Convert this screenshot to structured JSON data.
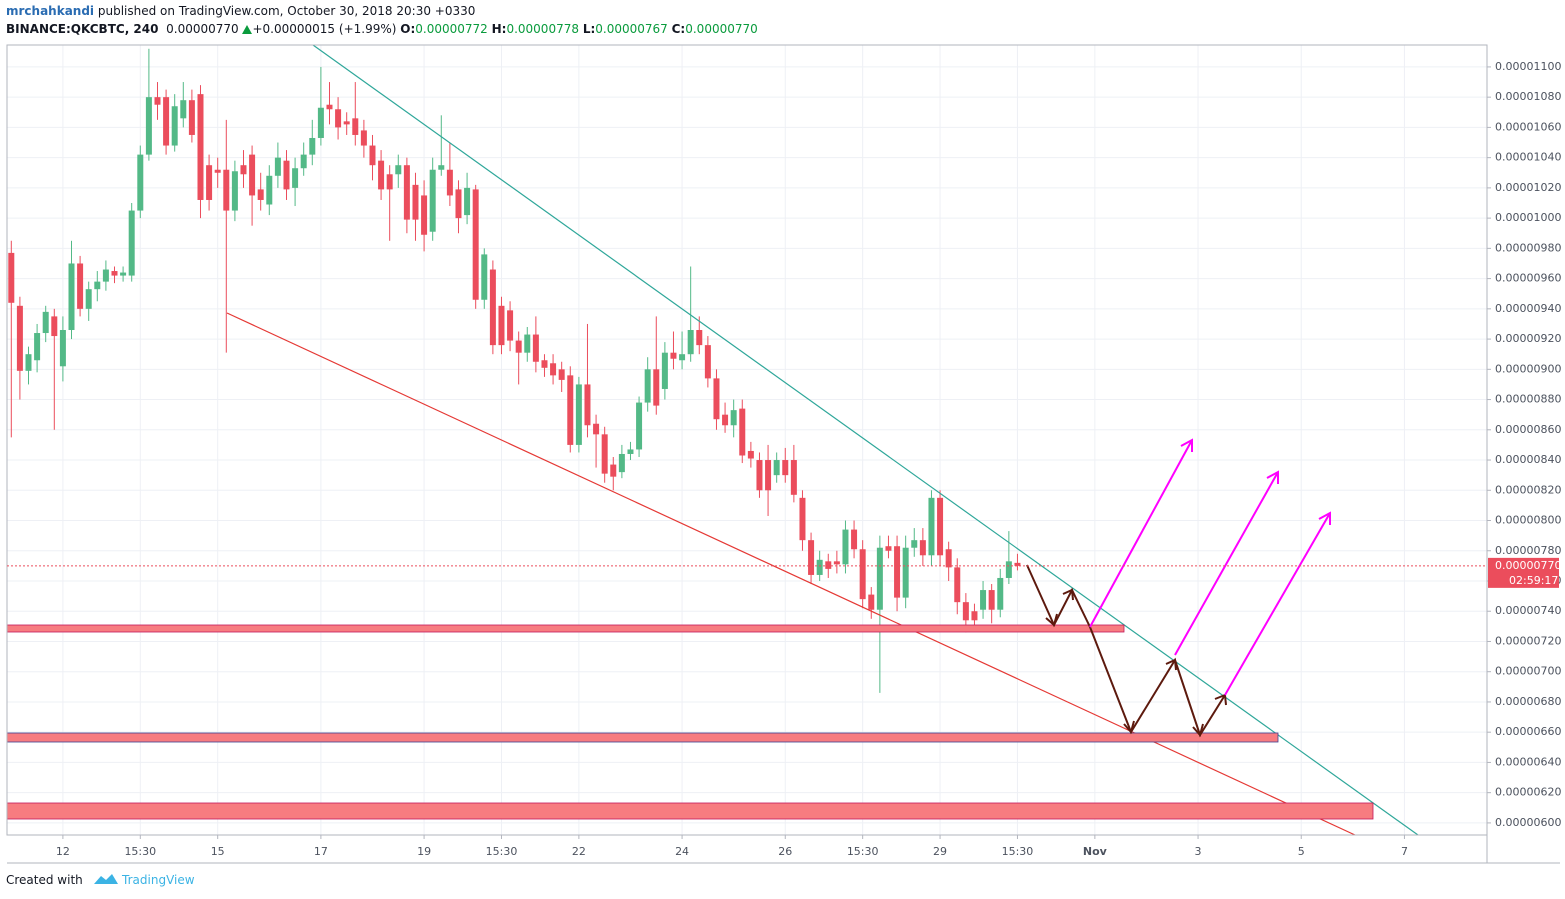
{
  "header": {
    "author": "mrchahkandi",
    "published": "published on TradingView.com, October 30, 2018 20:30 +0330",
    "symbol": "BINANCE:QKCBTC, 240",
    "last": "0.00000770",
    "change": "+0.00000015 (+1.99%)",
    "o_label": "O:",
    "o": "0.00000772",
    "h_label": "H:",
    "h": "0.00000778",
    "l_label": "L:",
    "l": "0.00000767",
    "c_label": "C:",
    "c": "0.00000770"
  },
  "countdown": "02:59:17",
  "footer": {
    "created": "Created with",
    "brand": "TradingView"
  },
  "chart_data": {
    "type": "candlestick",
    "up_color": "#53b987",
    "down_color": "#eb4d5c",
    "grid": true,
    "xlim": [
      -6.5,
      165.6
    ],
    "ylim": [
      5.92e-06,
      1.1145e-05
    ],
    "xticks": [
      {
        "value": 0,
        "label": "12"
      },
      {
        "value": 9,
        "label": "15:30"
      },
      {
        "value": 18,
        "label": "15"
      },
      {
        "value": 30,
        "label": "17"
      },
      {
        "value": 42,
        "label": "19"
      },
      {
        "value": 51,
        "label": "15:30"
      },
      {
        "value": 60,
        "label": "22"
      },
      {
        "value": 72,
        "label": "24"
      },
      {
        "value": 84,
        "label": "26"
      },
      {
        "value": 93,
        "label": "15:30"
      },
      {
        "value": 102,
        "label": "29"
      },
      {
        "value": 111,
        "label": "15:30"
      },
      {
        "value": 120,
        "label": "Nov"
      },
      {
        "value": 132,
        "label": "3"
      },
      {
        "value": 144,
        "label": "5"
      },
      {
        "value": 156,
        "label": "7"
      }
    ],
    "yticks": [
      {
        "value": 6e-06,
        "label": "0.00000600"
      },
      {
        "value": 6.2e-06,
        "label": "0.00000620"
      },
      {
        "value": 6.4e-06,
        "label": "0.00000640"
      },
      {
        "value": 6.6e-06,
        "label": "0.00000660"
      },
      {
        "value": 6.8e-06,
        "label": "0.00000680"
      },
      {
        "value": 7e-06,
        "label": "0.00000700"
      },
      {
        "value": 7.2e-06,
        "label": "0.00000720"
      },
      {
        "value": 7.4e-06,
        "label": "0.00000740"
      },
      {
        "value": 7.6e-06,
        "label": "0.00000760"
      },
      {
        "value": 7.8e-06,
        "label": "0.00000780"
      },
      {
        "value": 8e-06,
        "label": "0.00000800"
      },
      {
        "value": 8.2e-06,
        "label": "0.00000820"
      },
      {
        "value": 8.4e-06,
        "label": "0.00000840"
      },
      {
        "value": 8.6e-06,
        "label": "0.00000860"
      },
      {
        "value": 8.8e-06,
        "label": "0.00000880"
      },
      {
        "value": 9e-06,
        "label": "0.00000900"
      },
      {
        "value": 9.2e-06,
        "label": "0.00000920"
      },
      {
        "value": 9.4e-06,
        "label": "0.00000940"
      },
      {
        "value": 9.6e-06,
        "label": "0.00000960"
      },
      {
        "value": 9.8e-06,
        "label": "0.00000980"
      },
      {
        "value": 1e-05,
        "label": "0.00001000"
      },
      {
        "value": 1.02e-05,
        "label": "0.00001020"
      },
      {
        "value": 1.04e-05,
        "label": "0.00001040"
      },
      {
        "value": 1.06e-05,
        "label": "0.00001060"
      },
      {
        "value": 1.08e-05,
        "label": "0.00001080"
      },
      {
        "value": 1.1e-05,
        "label": "0.00001100"
      }
    ],
    "x": [
      -6,
      -5,
      -4,
      -3,
      -2,
      -1,
      0,
      1,
      2,
      3,
      4,
      5,
      6,
      7,
      8,
      9,
      10,
      11,
      12,
      13,
      14,
      15,
      16,
      17,
      18,
      19,
      20,
      21,
      22,
      23,
      24,
      25,
      26,
      27,
      28,
      29,
      30,
      31,
      32,
      33,
      34,
      35,
      36,
      37,
      38,
      39,
      40,
      41,
      42,
      43,
      44,
      45,
      46,
      47,
      48,
      49,
      50,
      51,
      52,
      53,
      54,
      55,
      56,
      57,
      58,
      59,
      60,
      61,
      62,
      63,
      64,
      65,
      66,
      67,
      68,
      69,
      70,
      71,
      72,
      73,
      74,
      75,
      76,
      77,
      78,
      79,
      80,
      81,
      82,
      83,
      84,
      85,
      86,
      87,
      88,
      89,
      90,
      91,
      92,
      93,
      94,
      95,
      96,
      97,
      98,
      99,
      100,
      101,
      102,
      103,
      104,
      105,
      106,
      107,
      108,
      109,
      110,
      111
    ],
    "open": [
      9.77e-06,
      9.42e-06,
      8.99e-06,
      9.06e-06,
      9.24e-06,
      9.35e-06,
      9.02e-06,
      9.26e-06,
      9.7e-06,
      9.4e-06,
      9.53e-06,
      9.58e-06,
      9.65e-06,
      9.62e-06,
      9.62e-06,
      1.005e-05,
      1.042e-05,
      1.08e-05,
      1.08e-05,
      1.048e-05,
      1.066e-05,
      1.078e-05,
      1.082e-05,
      1.035e-05,
      1.032e-05,
      1.032e-05,
      1.005e-05,
      1.035e-05,
      1.042e-05,
      1.019e-05,
      1.009e-05,
      1.028e-05,
      1.038e-05,
      1.02e-05,
      1.033e-05,
      1.042e-05,
      1.053e-05,
      1.075e-05,
      1.072e-05,
      1.064e-05,
      1.066e-05,
      1.058e-05,
      1.048e-05,
      1.038e-05,
      1.029e-05,
      1.029e-05,
      1.035e-05,
      1.022e-05,
      1.015e-05,
      9.91e-06,
      1.032e-05,
      1.032e-05,
      1.019e-05,
      1.002e-05,
      1.019e-05,
      9.46e-06,
      9.66e-06,
      9.42e-06,
      9.39e-06,
      9.19e-06,
      9.11e-06,
      9.23e-06,
      9.06e-06,
      9.04e-06,
      9e-06,
      8.96e-06,
      8.5e-06,
      8.9e-06,
      8.64e-06,
      8.57e-06,
      8.37e-06,
      8.32e-06,
      8.44e-06,
      8.47e-06,
      8.78e-06,
      9e-06,
      8.87e-06,
      9.11e-06,
      9.06e-06,
      9.1e-06,
      9.26e-06,
      9.16e-06,
      8.94e-06,
      8.7e-06,
      8.63e-06,
      8.74e-06,
      8.46e-06,
      8.4e-06,
      8.4e-06,
      8.3e-06,
      8.4e-06,
      8.4e-06,
      8.15e-06,
      7.87e-06,
      7.64e-06,
      7.73e-06,
      7.73e-06,
      7.71e-06,
      7.94e-06,
      7.81e-06,
      7.51e-06,
      7.41e-06,
      7.83e-06,
      7.83e-06,
      7.49e-06,
      7.82e-06,
      7.87e-06,
      7.77e-06,
      8.15e-06,
      7.81e-06,
      7.69e-06,
      7.46e-06,
      7.4e-06,
      7.41e-06,
      7.54e-06,
      7.41e-06,
      7.62e-06,
      7.72e-06
    ],
    "high": [
      9.85e-06,
      9.48e-06,
      9.15e-06,
      9.3e-06,
      9.42e-06,
      9.4e-06,
      9.35e-06,
      9.85e-06,
      9.75e-06,
      9.58e-06,
      9.65e-06,
      9.72e-06,
      9.68e-06,
      9.68e-06,
      1.01e-05,
      1.048e-05,
      1.112e-05,
      1.09e-05,
      1.085e-05,
      1.082e-05,
      1.09e-05,
      1.085e-05,
      1.088e-05,
      1.042e-05,
      1.04e-05,
      1.065e-05,
      1.038e-05,
      1.045e-05,
      1.048e-05,
      1.03e-05,
      1.035e-05,
      1.05e-05,
      1.045e-05,
      1.04e-05,
      1.05e-05,
      1.065e-05,
      1.1e-05,
      1.09e-05,
      1.08e-05,
      1.07e-05,
      1.09e-05,
      1.065e-05,
      1.055e-05,
      1.045e-05,
      1.035e-05,
      1.042e-05,
      1.04e-05,
      1.03e-05,
      1.025e-05,
      1.04e-05,
      1.068e-05,
      1.05e-05,
      1.025e-05,
      1.03e-05,
      1.022e-05,
      9.8e-06,
      9.72e-06,
      9.48e-06,
      9.45e-06,
      9.25e-06,
      9.28e-06,
      9.35e-06,
      9.1e-06,
      9.1e-06,
      9.05e-06,
      9.02e-06,
      8.95e-06,
      9.3e-06,
      8.7e-06,
      8.62e-06,
      8.42e-06,
      8.5e-06,
      8.52e-06,
      8.82e-06,
      9.08e-06,
      9.35e-06,
      9.18e-06,
      9.25e-06,
      9.25e-06,
      9.68e-06,
      9.35e-06,
      9.22e-06,
      9e-06,
      8.78e-06,
      8.8e-06,
      8.8e-06,
      8.52e-06,
      8.45e-06,
      8.5e-06,
      8.45e-06,
      8.48e-06,
      8.5e-06,
      8.2e-06,
      7.92e-06,
      7.8e-06,
      7.78e-06,
      7.8e-06,
      8e-06,
      8e-06,
      7.87e-06,
      7.56e-06,
      7.9e-06,
      7.9e-06,
      7.9e-06,
      7.9e-06,
      7.95e-06,
      7.95e-06,
      8.2e-06,
      8.2e-06,
      7.86e-06,
      7.75e-06,
      7.52e-06,
      7.45e-06,
      7.6e-06,
      7.58e-06,
      7.68e-06,
      7.93e-06,
      7.78e-06
    ],
    "low": [
      8.55e-06,
      8.8e-06,
      8.9e-06,
      8.98e-06,
      9.18e-06,
      8.6e-06,
      8.92e-06,
      9.2e-06,
      9.35e-06,
      9.32e-06,
      9.45e-06,
      9.52e-06,
      9.57e-06,
      9.58e-06,
      9.58e-06,
      1e-05,
      1.038e-05,
      1.065e-05,
      1.042e-05,
      1.044e-05,
      1.06e-05,
      1.05e-05,
      1e-05,
      1.005e-05,
      1.02e-05,
      9.11e-06,
      9.98e-06,
      1.02e-05,
      9.95e-06,
      1.005e-05,
      1.002e-05,
      1.02e-05,
      1.012e-05,
      1.008e-05,
      1.028e-05,
      1.035e-05,
      1.048e-05,
      1.062e-05,
      1.052e-05,
      1.055e-05,
      1.048e-05,
      1.04e-05,
      1.025e-05,
      1.012e-05,
      9.85e-06,
      1.02e-05,
      9.9e-06,
      9.85e-06,
      9.78e-06,
      9.85e-06,
      1.028e-05,
      1.008e-05,
      9.9e-06,
      9.96e-06,
      9.4e-06,
      9.4e-06,
      9.1e-06,
      9.1e-06,
      9.12e-06,
      8.9e-06,
      9.05e-06,
      8.98e-06,
      8.95e-06,
      8.9e-06,
      8.85e-06,
      8.45e-06,
      8.45e-06,
      8.55e-06,
      8.35e-06,
      8.25e-06,
      8.2e-06,
      8.28e-06,
      8.4e-06,
      8.42e-06,
      8.72e-06,
      8.7e-06,
      8.8e-06,
      9e-06,
      9e-06,
      9.05e-06,
      9.1e-06,
      8.88e-06,
      8.6e-06,
      8.58e-06,
      8.55e-06,
      8.38e-06,
      8.35e-06,
      8.15e-06,
      8.03e-06,
      8.25e-06,
      8.25e-06,
      8.12e-06,
      7.8e-06,
      7.58e-06,
      7.6e-06,
      7.62e-06,
      7.65e-06,
      7.65e-06,
      7.75e-06,
      7.42e-06,
      7.35e-06,
      6.86e-06,
      7.75e-06,
      7.4e-06,
      7.42e-06,
      7.76e-06,
      7.7e-06,
      7.7e-06,
      7.7e-06,
      7.6e-06,
      7.38e-06,
      7.26e-06,
      7.27e-06,
      7.35e-06,
      7.32e-06,
      7.36e-06,
      7.58e-06,
      7.67e-06
    ],
    "close": [
      9.44e-06,
      8.99e-06,
      9.1e-06,
      9.24e-06,
      9.38e-06,
      9.22e-06,
      9.26e-06,
      9.7e-06,
      9.4e-06,
      9.53e-06,
      9.58e-06,
      9.66e-06,
      9.62e-06,
      9.64e-06,
      1.005e-05,
      1.042e-05,
      1.08e-05,
      1.075e-05,
      1.048e-05,
      1.074e-05,
      1.078e-05,
      1.055e-05,
      1.012e-05,
      1.012e-05,
      1.03e-05,
      1.005e-05,
      1.031e-05,
      1.029e-05,
      1.015e-05,
      1.012e-05,
      1.028e-05,
      1.04e-05,
      1.019e-05,
      1.033e-05,
      1.042e-05,
      1.053e-05,
      1.073e-05,
      1.072e-05,
      1.06e-05,
      1.062e-05,
      1.055e-05,
      1.048e-05,
      1.035e-05,
      1.019e-05,
      1.019e-05,
      1.035e-05,
      9.99e-06,
      9.99e-06,
      9.89e-06,
      1.032e-05,
      1.035e-05,
      1.015e-05,
      1e-05,
      1.02e-05,
      9.46e-06,
      9.76e-06,
      9.16e-06,
      9.16e-06,
      9.19e-06,
      9.11e-06,
      9.23e-06,
      9.05e-06,
      9.01e-06,
      8.96e-06,
      8.93e-06,
      8.5e-06,
      8.9e-06,
      8.63e-06,
      8.57e-06,
      8.31e-06,
      8.29e-06,
      8.44e-06,
      8.47e-06,
      8.78e-06,
      9e-06,
      8.76e-06,
      9.11e-06,
      9.07e-06,
      9.1e-06,
      9.26e-06,
      9.16e-06,
      8.94e-06,
      8.67e-06,
      8.63e-06,
      8.73e-06,
      8.43e-06,
      8.41e-06,
      8.2e-06,
      8.2e-06,
      8.4e-06,
      8.3e-06,
      8.17e-06,
      7.87e-06,
      7.64e-06,
      7.74e-06,
      7.68e-06,
      7.71e-06,
      7.94e-06,
      7.81e-06,
      7.48e-06,
      7.41e-06,
      7.82e-06,
      7.8e-06,
      7.49e-06,
      7.82e-06,
      7.87e-06,
      7.77e-06,
      8.15e-06,
      7.77e-06,
      7.69e-06,
      7.46e-06,
      7.34e-06,
      7.34e-06,
      7.54e-06,
      7.41e-06,
      7.62e-06,
      7.73e-06,
      7.7e-06
    ]
  }
}
